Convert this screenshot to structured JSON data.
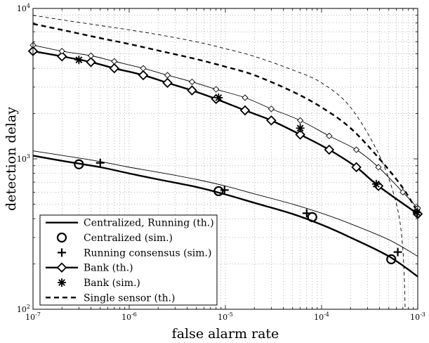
{
  "chart_data": {
    "type": "line",
    "title": "",
    "xlabel": "false alarm rate",
    "ylabel": "detection delay",
    "xscale": "log",
    "yscale": "log",
    "xlim": [
      1e-07,
      0.001
    ],
    "ylim": [
      100,
      10000
    ],
    "grid": true,
    "legend_position": "bottom-left",
    "x_tick_labels": [
      {
        "base": "10",
        "exp": "-7",
        "value": 1e-07
      },
      {
        "base": "10",
        "exp": "-6",
        "value": 1e-06
      },
      {
        "base": "10",
        "exp": "-5",
        "value": 1e-05
      },
      {
        "base": "10",
        "exp": "-4",
        "value": 0.0001
      },
      {
        "base": "10",
        "exp": "-3",
        "value": 0.001
      }
    ],
    "y_tick_labels": [
      {
        "base": "10",
        "exp": "2",
        "value": 100
      },
      {
        "base": "10",
        "exp": "3",
        "value": 1000
      },
      {
        "base": "10",
        "exp": "4",
        "value": 10000
      }
    ],
    "series": [
      {
        "name": "Centralized, Running (th.)",
        "style": "thick-solid",
        "x": [
          1e-07,
          2e-07,
          5e-07,
          1e-06,
          2e-06,
          5e-06,
          1e-05,
          2e-05,
          5e-05,
          0.0001,
          0.0002,
          0.0005,
          0.001
        ],
        "y": [
          1050,
          970,
          880,
          800,
          730,
          650,
          580,
          510,
          430,
          365,
          300,
          225,
          165
        ]
      },
      {
        "name": "",
        "style": "thin-solid",
        "x": [
          1e-07,
          2e-07,
          5e-07,
          1e-06,
          2e-06,
          5e-06,
          1e-05,
          2e-05,
          5e-05,
          0.0001,
          0.0002,
          0.0005,
          0.001
        ],
        "y": [
          1130,
          1055,
          960,
          880,
          815,
          730,
          660,
          585,
          500,
          435,
          370,
          290,
          225
        ]
      },
      {
        "name": "Centralized (sim.)",
        "style": "marker-circle",
        "x": [
          3e-07,
          8.5e-06,
          8e-05,
          0.00053
        ],
        "y": [
          920,
          610,
          410,
          215
        ]
      },
      {
        "name": "Running consensus (sim.)",
        "style": "marker-plus",
        "x": [
          5e-07,
          9.8e-06,
          7e-05,
          0.00062
        ],
        "y": [
          940,
          620,
          435,
          240
        ]
      },
      {
        "name": "Bank (th.)",
        "style": "thick-solid-diamond",
        "x": [
          1e-07,
          2e-07,
          4e-07,
          7e-07,
          1.4e-06,
          2.5e-06,
          4.5e-06,
          8e-06,
          1.6e-05,
          3e-05,
          6e-05,
          0.00012,
          0.00023,
          0.00039,
          0.001
        ],
        "y": [
          5200,
          4800,
          4400,
          4000,
          3600,
          3200,
          2850,
          2500,
          2100,
          1800,
          1450,
          1150,
          880,
          660,
          430
        ]
      },
      {
        "name": "",
        "style": "thin-solid-diamond",
        "x": [
          1e-07,
          2e-07,
          4e-07,
          7e-07,
          1.4e-06,
          2.5e-06,
          4.5e-06,
          8e-06,
          1.6e-05,
          3e-05,
          6e-05,
          0.00012,
          0.00023,
          0.00039,
          0.0007,
          0.001
        ],
        "y": [
          5700,
          5200,
          4850,
          4450,
          4000,
          3600,
          3250,
          2900,
          2550,
          2150,
          1800,
          1420,
          1150,
          880,
          600,
          470
        ]
      },
      {
        "name": "Bank (sim.)",
        "style": "marker-asterisk",
        "x": [
          3e-07,
          8.5e-06,
          6e-05,
          0.00037,
          0.00098
        ],
        "y": [
          4550,
          2550,
          1600,
          680,
          440
        ]
      },
      {
        "name": "Single sensor (th.)",
        "style": "thick-dashed",
        "x": [
          1e-07,
          2e-07,
          5e-07,
          1e-06,
          2e-06,
          5e-06,
          1e-05,
          2e-05,
          5e-05,
          0.0001,
          0.0002,
          0.0004,
          0.0007,
          0.001
        ],
        "y": [
          7900,
          7200,
          6350,
          5800,
          5250,
          4600,
          4100,
          3600,
          2800,
          2200,
          1600,
          1000,
          640,
          440
        ]
      },
      {
        "name": "",
        "style": "thin-dashed",
        "x": [
          1e-07,
          2e-07,
          5e-07,
          1e-06,
          2e-06,
          5e-06,
          1e-05,
          2e-05,
          5e-05,
          0.0001,
          0.0002,
          0.0004,
          0.0006,
          0.0007,
          0.00074
        ],
        "y": [
          9000,
          8400,
          7700,
          7200,
          6700,
          6000,
          5400,
          4800,
          3900,
          3200,
          2200,
          1050,
          500,
          250,
          100
        ]
      }
    ]
  }
}
